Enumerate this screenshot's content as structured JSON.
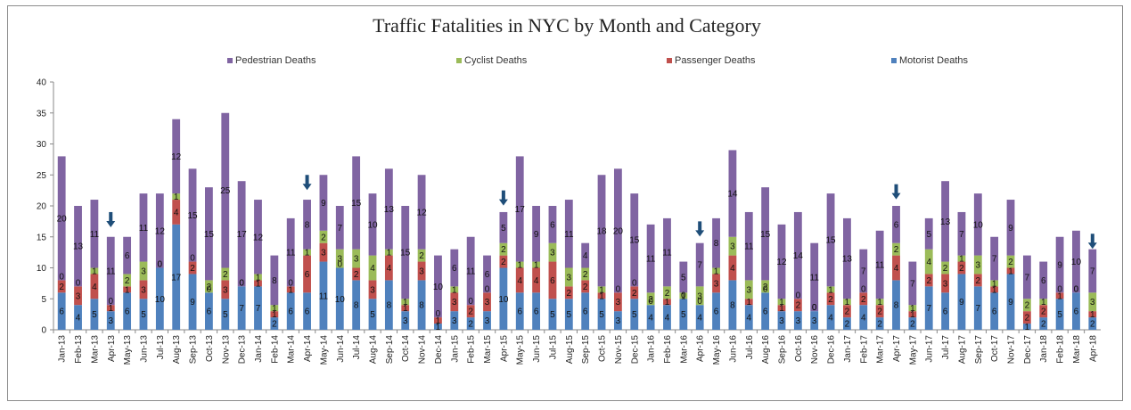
{
  "chart_data": {
    "type": "bar",
    "stacked": true,
    "title": "Traffic Fatalities in NYC by Month and Category",
    "xlabel": "",
    "ylabel": "",
    "ylim": [
      0,
      40
    ],
    "yticks": [
      0,
      5,
      10,
      15,
      20,
      25,
      30,
      35,
      40
    ],
    "grid": false,
    "legend_position": "top",
    "categories": [
      "Jan-13",
      "Feb-13",
      "Mar-13",
      "Apr-13",
      "May-13",
      "Jun-13",
      "Jul-13",
      "Aug-13",
      "Sep-13",
      "Oct-13",
      "Nov-13",
      "Dec-13",
      "Jan-14",
      "Feb-14",
      "Mar-14",
      "Apr-14",
      "May-14",
      "Jun-14",
      "Jul-14",
      "Aug-14",
      "Sep-14",
      "Oct-14",
      "Nov-14",
      "Dec-14",
      "Jan-15",
      "Feb-15",
      "Mar-15",
      "Apr-15",
      "May-15",
      "Jun-15",
      "Jul-15",
      "Aug-15",
      "Sep-15",
      "Oct-15",
      "Nov-15",
      "Dec-15",
      "Jan-16",
      "Feb-16",
      "Mar-16",
      "Apr-16",
      "May-16",
      "Jun-16",
      "Jul-16",
      "Aug-16",
      "Sep-16",
      "Oct-16",
      "Nov-16",
      "Dec-16",
      "Jan-17",
      "Feb-17",
      "Mar-17",
      "Apr-17",
      "May-17",
      "Jun-17",
      "Jul-17",
      "Aug-17",
      "Sep-17",
      "Oct-17",
      "Nov-17",
      "Dec-17",
      "Jan-18",
      "Feb-18",
      "Mar-18",
      "Apr-18"
    ],
    "series": [
      {
        "name": "Motorist Deaths",
        "color": "#4f81bd",
        "values": [
          6,
          4,
          5,
          3,
          6,
          5,
          10,
          17,
          9,
          6,
          5,
          7,
          7,
          2,
          6,
          6,
          11,
          10,
          8,
          5,
          8,
          3,
          8,
          1,
          3,
          2,
          3,
          10,
          6,
          6,
          5,
          5,
          6,
          5,
          3,
          5,
          4,
          4,
          5,
          4,
          6,
          8,
          4,
          6,
          3,
          3,
          3,
          4,
          2,
          4,
          2,
          8,
          2,
          7,
          6,
          9,
          7,
          6,
          9,
          1,
          2,
          5,
          6,
          2
        ]
      },
      {
        "name": "Passenger Deaths",
        "color": "#c0504d",
        "values": [
          2,
          3,
          4,
          1,
          1,
          3,
          0,
          4,
          2,
          0,
          3,
          0,
          1,
          1,
          1,
          6,
          3,
          0,
          2,
          3,
          4,
          1,
          3,
          1,
          3,
          2,
          3,
          2,
          4,
          4,
          6,
          2,
          2,
          1,
          3,
          2,
          0,
          1,
          0,
          0,
          3,
          4,
          1,
          0,
          1,
          2,
          0,
          2,
          2,
          2,
          2,
          4,
          1,
          2,
          3,
          2,
          2,
          1,
          1,
          2,
          2,
          1,
          0,
          1
        ]
      },
      {
        "name": "Cyclist Deaths",
        "color": "#9bbb59",
        "values": [
          0,
          0,
          1,
          0,
          2,
          3,
          0,
          1,
          0,
          2,
          2,
          0,
          1,
          1,
          0,
          1,
          2,
          3,
          3,
          4,
          1,
          1,
          2,
          0,
          1,
          0,
          0,
          2,
          1,
          1,
          3,
          3,
          2,
          1,
          0,
          0,
          2,
          2,
          1,
          3,
          1,
          3,
          3,
          2,
          1,
          0,
          0,
          1,
          1,
          0,
          1,
          2,
          1,
          4,
          2,
          1,
          3,
          1,
          2,
          2,
          1,
          0,
          0,
          3
        ]
      },
      {
        "name": "Pedestrian Deaths",
        "color": "#8064a2",
        "values": [
          20,
          13,
          11,
          11,
          6,
          11,
          12,
          12,
          15,
          15,
          25,
          17,
          12,
          8,
          11,
          8,
          9,
          7,
          15,
          10,
          13,
          15,
          12,
          10,
          6,
          11,
          6,
          5,
          17,
          9,
          6,
          11,
          4,
          18,
          20,
          15,
          11,
          11,
          5,
          7,
          8,
          14,
          11,
          15,
          12,
          14,
          11,
          15,
          13,
          7,
          11,
          6,
          7,
          5,
          13,
          7,
          10,
          7,
          9,
          7,
          6,
          9,
          10,
          7
        ]
      }
    ],
    "annotations": [
      {
        "type": "down-arrow",
        "category": "Apr-13",
        "value": 19
      },
      {
        "type": "down-arrow",
        "category": "Apr-14",
        "value": 25
      },
      {
        "type": "down-arrow",
        "category": "Apr-15",
        "value": 22.5
      },
      {
        "type": "down-arrow",
        "category": "Apr-16",
        "value": 17.5
      },
      {
        "type": "down-arrow",
        "category": "Apr-17",
        "value": 23.5
      },
      {
        "type": "down-arrow",
        "category": "Apr-18",
        "value": 15.5
      }
    ]
  }
}
